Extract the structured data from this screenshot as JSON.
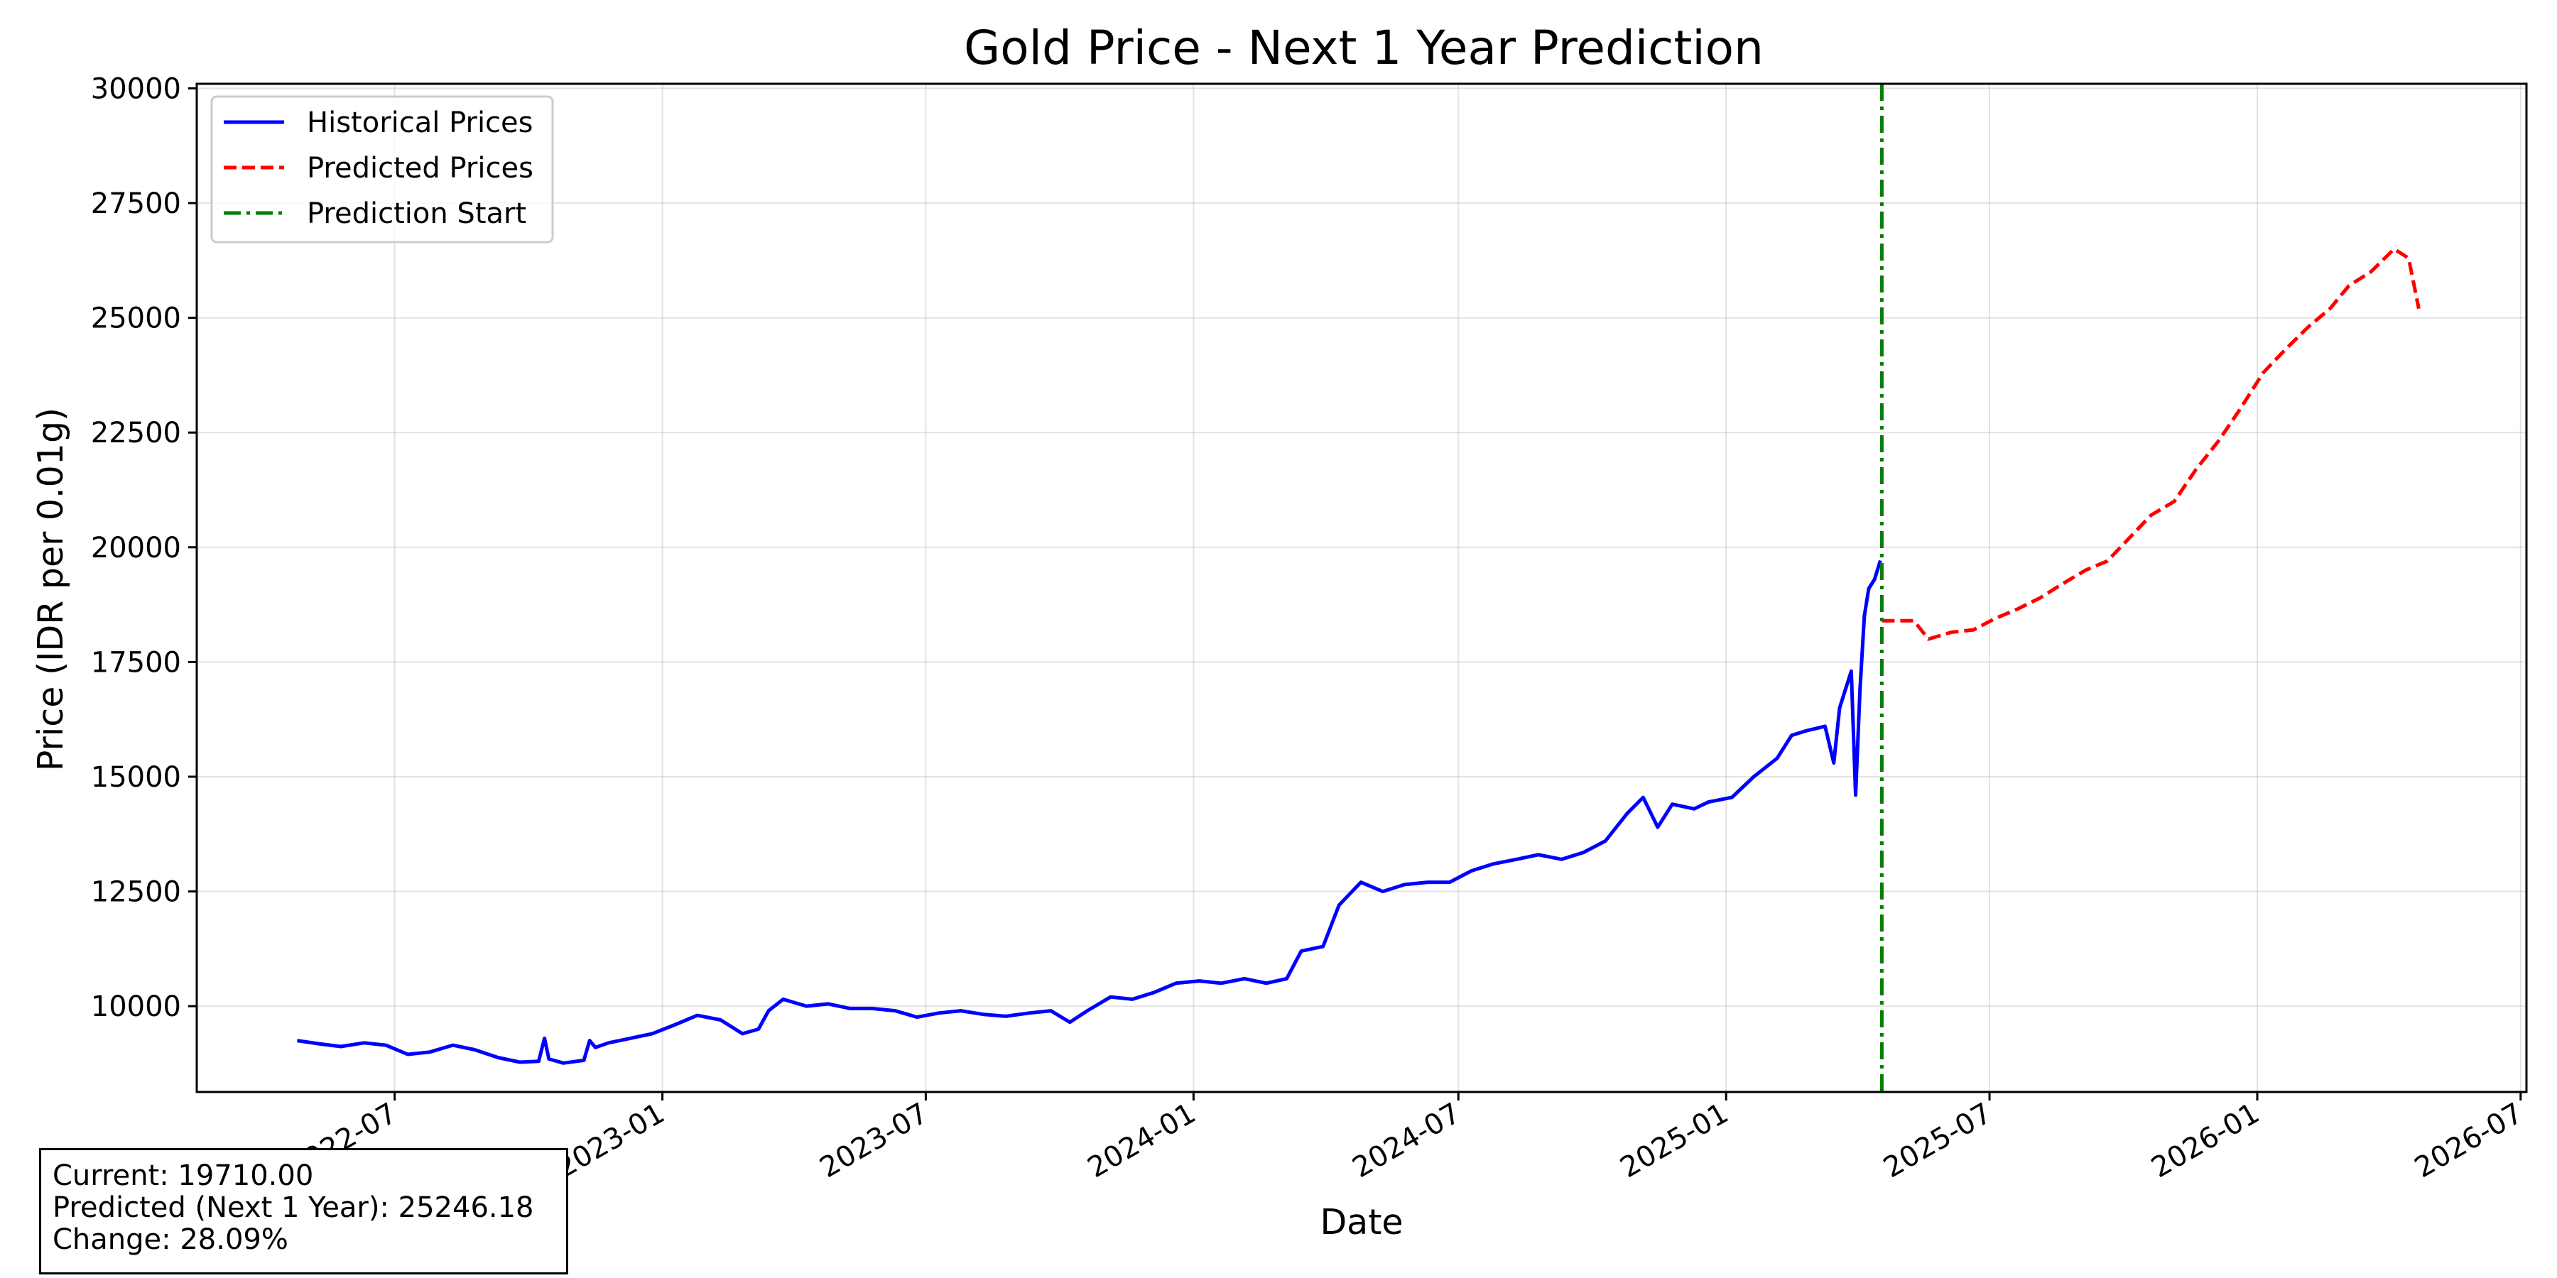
{
  "chart_data": {
    "type": "line",
    "title": "Gold Price - Next 1 Year Prediction",
    "xlabel": "Date",
    "ylabel": "Price (IDR per 0.01g)",
    "x_type": "date",
    "xlim": [
      "2022-02-15",
      "2026-07-05"
    ],
    "ylim": [
      8130,
      30100
    ],
    "x_ticks": [
      "2022-07",
      "2023-01",
      "2023-07",
      "2024-01",
      "2024-07",
      "2025-01",
      "2025-07",
      "2026-01",
      "2026-07"
    ],
    "y_ticks": [
      10000,
      12500,
      15000,
      17500,
      20000,
      22500,
      25000,
      27500,
      30000
    ],
    "grid": true,
    "legend_position": "top-left",
    "legend": [
      "Historical Prices",
      "Predicted Prices",
      "Prediction Start"
    ],
    "colors": {
      "historical": "#0000ff",
      "predicted": "#ff0000",
      "prediction_start": "#008000"
    },
    "series": [
      {
        "name": "Historical Prices",
        "style": "solid",
        "points": [
          [
            "2022-04-25",
            9250
          ],
          [
            "2022-05-10",
            9180
          ],
          [
            "2022-05-25",
            9120
          ],
          [
            "2022-06-10",
            9200
          ],
          [
            "2022-06-25",
            9150
          ],
          [
            "2022-07-10",
            8950
          ],
          [
            "2022-07-25",
            9000
          ],
          [
            "2022-08-10",
            9150
          ],
          [
            "2022-08-25",
            9050
          ],
          [
            "2022-09-10",
            8880
          ],
          [
            "2022-09-25",
            8780
          ],
          [
            "2022-10-08",
            8800
          ],
          [
            "2022-10-12",
            9300
          ],
          [
            "2022-10-15",
            8850
          ],
          [
            "2022-10-25",
            8760
          ],
          [
            "2022-11-08",
            8820
          ],
          [
            "2022-11-12",
            9250
          ],
          [
            "2022-11-16",
            9100
          ],
          [
            "2022-11-25",
            9200
          ],
          [
            "2022-12-10",
            9300
          ],
          [
            "2022-12-25",
            9400
          ],
          [
            "2023-01-10",
            9600
          ],
          [
            "2023-01-25",
            9800
          ],
          [
            "2023-02-10",
            9700
          ],
          [
            "2023-02-25",
            9400
          ],
          [
            "2023-03-08",
            9500
          ],
          [
            "2023-03-15",
            9900
          ],
          [
            "2023-03-25",
            10150
          ],
          [
            "2023-04-10",
            10000
          ],
          [
            "2023-04-25",
            10050
          ],
          [
            "2023-05-10",
            9950
          ],
          [
            "2023-05-25",
            9950
          ],
          [
            "2023-06-10",
            9900
          ],
          [
            "2023-06-25",
            9760
          ],
          [
            "2023-07-10",
            9850
          ],
          [
            "2023-07-25",
            9900
          ],
          [
            "2023-08-10",
            9820
          ],
          [
            "2023-08-25",
            9780
          ],
          [
            "2023-09-10",
            9850
          ],
          [
            "2023-09-25",
            9900
          ],
          [
            "2023-10-08",
            9650
          ],
          [
            "2023-10-20",
            9900
          ],
          [
            "2023-11-05",
            10200
          ],
          [
            "2023-11-20",
            10150
          ],
          [
            "2023-12-05",
            10300
          ],
          [
            "2023-12-20",
            10500
          ],
          [
            "2024-01-05",
            10550
          ],
          [
            "2024-01-20",
            10500
          ],
          [
            "2024-02-05",
            10600
          ],
          [
            "2024-02-20",
            10500
          ],
          [
            "2024-03-05",
            10600
          ],
          [
            "2024-03-15",
            11200
          ],
          [
            "2024-03-30",
            11300
          ],
          [
            "2024-04-10",
            12200
          ],
          [
            "2024-04-25",
            12700
          ],
          [
            "2024-05-10",
            12500
          ],
          [
            "2024-05-25",
            12650
          ],
          [
            "2024-06-10",
            12700
          ],
          [
            "2024-06-25",
            12700
          ],
          [
            "2024-07-10",
            12950
          ],
          [
            "2024-07-25",
            13100
          ],
          [
            "2024-08-10",
            13200
          ],
          [
            "2024-08-25",
            13300
          ],
          [
            "2024-09-10",
            13200
          ],
          [
            "2024-09-25",
            13350
          ],
          [
            "2024-10-10",
            13600
          ],
          [
            "2024-10-25",
            14200
          ],
          [
            "2024-11-05",
            14550
          ],
          [
            "2024-11-15",
            13900
          ],
          [
            "2024-11-25",
            14400
          ],
          [
            "2024-12-10",
            14300
          ],
          [
            "2024-12-20",
            14450
          ],
          [
            "2025-01-05",
            14550
          ],
          [
            "2025-01-20",
            15000
          ],
          [
            "2025-02-05",
            15400
          ],
          [
            "2025-02-15",
            15900
          ],
          [
            "2025-02-25",
            16000
          ],
          [
            "2025-03-10",
            16100
          ],
          [
            "2025-03-16",
            15300
          ],
          [
            "2025-03-20",
            16500
          ],
          [
            "2025-03-28",
            17300
          ],
          [
            "2025-03-31",
            14600
          ],
          [
            "2025-04-03",
            16900
          ],
          [
            "2025-04-06",
            18500
          ],
          [
            "2025-04-09",
            19100
          ],
          [
            "2025-04-13",
            19300
          ],
          [
            "2025-04-17",
            19710
          ]
        ]
      },
      {
        "name": "Predicted Prices",
        "style": "dashed",
        "points": [
          [
            "2025-04-18",
            18400
          ],
          [
            "2025-05-10",
            18400
          ],
          [
            "2025-05-20",
            18000
          ],
          [
            "2025-06-05",
            18150
          ],
          [
            "2025-06-20",
            18200
          ],
          [
            "2025-07-05",
            18450
          ],
          [
            "2025-07-20",
            18650
          ],
          [
            "2025-08-05",
            18900
          ],
          [
            "2025-08-20",
            19200
          ],
          [
            "2025-09-05",
            19500
          ],
          [
            "2025-09-20",
            19700
          ],
          [
            "2025-10-05",
            20200
          ],
          [
            "2025-10-20",
            20700
          ],
          [
            "2025-11-05",
            21000
          ],
          [
            "2025-11-20",
            21700
          ],
          [
            "2025-12-05",
            22300
          ],
          [
            "2025-12-20",
            23000
          ],
          [
            "2026-01-05",
            23800
          ],
          [
            "2026-01-20",
            24300
          ],
          [
            "2026-02-05",
            24800
          ],
          [
            "2026-02-20",
            25200
          ],
          [
            "2026-03-05",
            25700
          ],
          [
            "2026-03-20",
            26000
          ],
          [
            "2026-04-05",
            26500
          ],
          [
            "2026-04-15",
            26300
          ],
          [
            "2026-04-22",
            25200
          ]
        ]
      }
    ],
    "prediction_start": "2025-04-18"
  },
  "stats_box": {
    "current": "Current: 19710.00",
    "predicted": "Predicted (Next 1 Year): 25246.18",
    "change": "Change: 28.09%"
  }
}
